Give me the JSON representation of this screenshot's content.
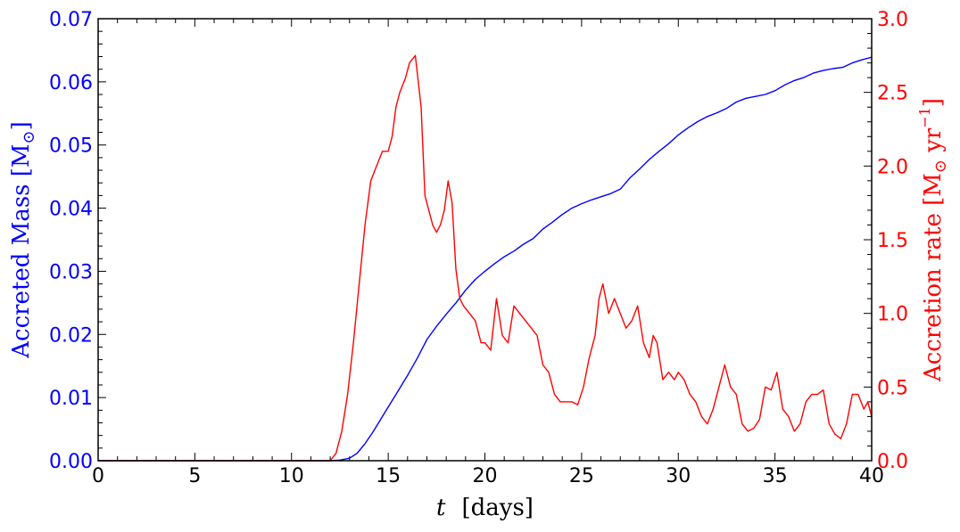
{
  "chart_data": {
    "type": "line",
    "xlabel_var": "t",
    "xlabel_unit": "[days]",
    "ylabel_left_text": "Accreted Mass  [M",
    "ylabel_left_sub": "⊙",
    "ylabel_left_end": "]",
    "ylabel_right_text": "Accretion rate  [M",
    "ylabel_right_sub": "⊙",
    "ylabel_right_mid": " yr",
    "ylabel_right_sup": "−1",
    "ylabel_right_end": "]",
    "xlim": [
      0,
      40
    ],
    "ylim_left": [
      0,
      0.07
    ],
    "ylim_right": [
      0,
      3.0
    ],
    "x_ticks": [
      0,
      5,
      10,
      15,
      20,
      25,
      30,
      35,
      40
    ],
    "x_tick_labels": [
      "0",
      "5",
      "10",
      "15",
      "20",
      "25",
      "30",
      "35",
      "40"
    ],
    "y_left_ticks": [
      0,
      0.01,
      0.02,
      0.03,
      0.04,
      0.05,
      0.06,
      0.07
    ],
    "y_left_tick_labels": [
      "0.00",
      "0.01",
      "0.02",
      "0.03",
      "0.04",
      "0.05",
      "0.06",
      "0.07"
    ],
    "y_right_ticks": [
      0,
      0.5,
      1.0,
      1.5,
      2.0,
      2.5,
      3.0
    ],
    "y_right_tick_labels": [
      "0.0",
      "0.5",
      "1.0",
      "1.5",
      "2.0",
      "2.5",
      "3.0"
    ],
    "grid": false,
    "colors": {
      "left": "#0000ff",
      "right": "#ff0000",
      "axes": "#000000"
    },
    "series": [
      {
        "axis": "left",
        "color": "#0000ff",
        "x": [
          0,
          12.0,
          12.5,
          13.0,
          13.4,
          13.8,
          14.2,
          14.6,
          15.0,
          15.5,
          16.0,
          16.5,
          17.0,
          17.5,
          18.0,
          18.5,
          19.0,
          19.5,
          20.0,
          20.5,
          21.0,
          21.5,
          22.0,
          22.5,
          23.0,
          23.5,
          24.0,
          24.5,
          25.0,
          25.5,
          26.0,
          26.5,
          27.0,
          27.5,
          28.0,
          28.5,
          29.0,
          29.5,
          30.0,
          30.5,
          31.0,
          31.5,
          32.0,
          32.5,
          33.0,
          33.5,
          34.0,
          34.5,
          35.0,
          35.5,
          36.0,
          36.5,
          37.0,
          37.5,
          38.0,
          38.5,
          39.0,
          39.5,
          40.0
        ],
        "y": [
          0,
          0.0,
          0.0001,
          0.0004,
          0.0012,
          0.0027,
          0.0045,
          0.0065,
          0.0085,
          0.011,
          0.0135,
          0.0162,
          0.0192,
          0.0213,
          0.0232,
          0.025,
          0.027,
          0.0287,
          0.03,
          0.0312,
          0.0323,
          0.0332,
          0.0343,
          0.0352,
          0.0367,
          0.0378,
          0.039,
          0.04,
          0.0407,
          0.0413,
          0.0418,
          0.0423,
          0.043,
          0.0448,
          0.0462,
          0.0477,
          0.049,
          0.0502,
          0.0516,
          0.0527,
          0.0537,
          0.0545,
          0.0551,
          0.0558,
          0.0568,
          0.0574,
          0.0577,
          0.058,
          0.0586,
          0.0595,
          0.0602,
          0.0607,
          0.0614,
          0.0618,
          0.0621,
          0.0623,
          0.063,
          0.0635,
          0.0639
        ]
      },
      {
        "axis": "right",
        "color": "#ff0000",
        "x": [
          0,
          12.0,
          12.3,
          12.6,
          12.9,
          13.2,
          13.5,
          13.8,
          14.1,
          14.4,
          14.7,
          15.0,
          15.2,
          15.4,
          15.6,
          15.9,
          16.1,
          16.4,
          16.7,
          16.9,
          17.1,
          17.3,
          17.5,
          17.7,
          17.9,
          18.1,
          18.3,
          18.5,
          18.7,
          18.9,
          19.2,
          19.5,
          19.8,
          20.0,
          20.3,
          20.6,
          20.9,
          21.2,
          21.5,
          21.8,
          22.1,
          22.4,
          22.7,
          23.0,
          23.3,
          23.6,
          23.9,
          24.2,
          24.5,
          24.8,
          25.1,
          25.4,
          25.7,
          25.9,
          26.1,
          26.4,
          26.7,
          27.0,
          27.3,
          27.6,
          27.9,
          28.2,
          28.5,
          28.7,
          28.9,
          29.2,
          29.5,
          29.8,
          30.0,
          30.3,
          30.6,
          30.9,
          31.2,
          31.5,
          31.8,
          32.1,
          32.4,
          32.7,
          33.0,
          33.3,
          33.6,
          33.9,
          34.2,
          34.5,
          34.8,
          35.1,
          35.4,
          35.7,
          36.0,
          36.3,
          36.6,
          36.9,
          37.2,
          37.5,
          37.8,
          38.1,
          38.4,
          38.7,
          39.0,
          39.3,
          39.6,
          39.8,
          40.0
        ],
        "y": [
          0,
          0.0,
          0.05,
          0.2,
          0.45,
          0.8,
          1.2,
          1.6,
          1.9,
          2.0,
          2.1,
          2.1,
          2.2,
          2.4,
          2.5,
          2.6,
          2.7,
          2.75,
          2.4,
          1.8,
          1.7,
          1.6,
          1.55,
          1.6,
          1.7,
          1.9,
          1.75,
          1.3,
          1.1,
          1.05,
          1.0,
          0.95,
          0.8,
          0.8,
          0.75,
          1.1,
          0.85,
          0.8,
          1.05,
          1.0,
          0.95,
          0.9,
          0.85,
          0.65,
          0.6,
          0.45,
          0.4,
          0.4,
          0.4,
          0.38,
          0.5,
          0.7,
          0.85,
          1.1,
          1.2,
          1.0,
          1.1,
          1.0,
          0.9,
          0.95,
          1.05,
          0.8,
          0.7,
          0.85,
          0.8,
          0.55,
          0.6,
          0.55,
          0.6,
          0.55,
          0.45,
          0.4,
          0.3,
          0.25,
          0.35,
          0.5,
          0.65,
          0.5,
          0.45,
          0.25,
          0.2,
          0.22,
          0.28,
          0.5,
          0.48,
          0.6,
          0.35,
          0.3,
          0.2,
          0.25,
          0.4,
          0.45,
          0.45,
          0.48,
          0.25,
          0.18,
          0.15,
          0.25,
          0.45,
          0.45,
          0.35,
          0.4,
          0.3
        ]
      }
    ]
  }
}
